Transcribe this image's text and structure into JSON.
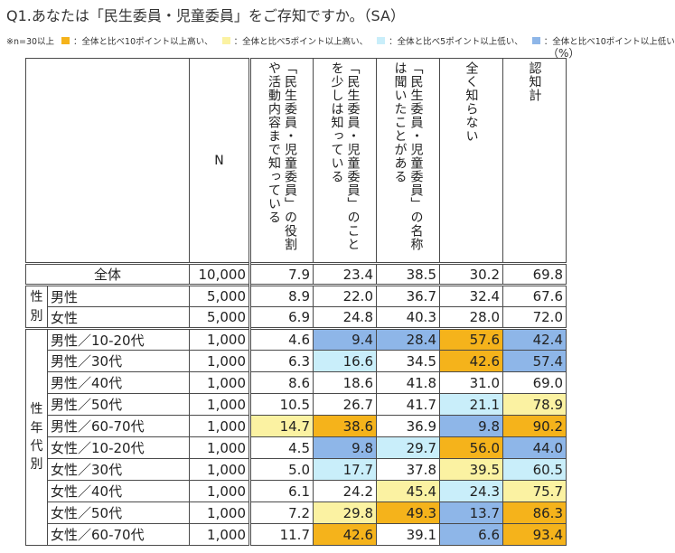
{
  "title": "Q1.あなたは「民生委員・児童委員」をご存知ですか。（SA）",
  "legend": {
    "note": "※n=30以上",
    "items": [
      {
        "color": "#f5b31b",
        "label": "：全体と比べ10ポイント以上高い、"
      },
      {
        "color": "#fbf2a2",
        "label": "：全体と比べ5ポイント以上高い、"
      },
      {
        "color": "#c9eefa",
        "label": "：全体と比べ5ポイント以上低い、"
      },
      {
        "color": "#8eb6e8",
        "label": "：全体と比べ10ポイント以上低い"
      }
    ],
    "unit": "（%）"
  },
  "table": {
    "n_header": "N",
    "columns": [
      "「民生委員・児童委員」の役割や活動内容まで知っている",
      "「民生委員・児童委員」のことを少しは知っている",
      "「民生委員・児童委員」の名称は聞いたことがある",
      "全く知らない",
      "認知計"
    ],
    "groups": {
      "sex": "性別",
      "sex_age": "性年代別"
    },
    "rows": [
      {
        "label": "全体",
        "n": "10,000",
        "values": [
          "7.9",
          "23.4",
          "38.5",
          "30.2",
          "69.8"
        ],
        "hl": [
          "",
          "",
          "",
          "",
          ""
        ]
      },
      {
        "label": "男性",
        "n": "5,000",
        "values": [
          "8.9",
          "22.0",
          "36.7",
          "32.4",
          "67.6"
        ],
        "hl": [
          "",
          "",
          "",
          "",
          ""
        ]
      },
      {
        "label": "女性",
        "n": "5,000",
        "values": [
          "6.9",
          "24.8",
          "40.3",
          "28.0",
          "72.0"
        ],
        "hl": [
          "",
          "",
          "",
          "",
          ""
        ]
      },
      {
        "label": "男性／10-20代",
        "n": "1,000",
        "values": [
          "4.6",
          "9.4",
          "28.4",
          "57.6",
          "42.4"
        ],
        "hl": [
          "",
          "b",
          "b",
          "o",
          "b"
        ]
      },
      {
        "label": "男性／30代",
        "n": "1,000",
        "values": [
          "6.3",
          "16.6",
          "34.5",
          "42.6",
          "57.4"
        ],
        "hl": [
          "",
          "c",
          "",
          "o",
          "b"
        ]
      },
      {
        "label": "男性／40代",
        "n": "1,000",
        "values": [
          "8.6",
          "18.6",
          "41.8",
          "31.0",
          "69.0"
        ],
        "hl": [
          "",
          "",
          "",
          "",
          ""
        ]
      },
      {
        "label": "男性／50代",
        "n": "1,000",
        "values": [
          "10.5",
          "26.7",
          "41.7",
          "21.1",
          "78.9"
        ],
        "hl": [
          "",
          "",
          "",
          "c",
          "y"
        ]
      },
      {
        "label": "男性／60-70代",
        "n": "1,000",
        "values": [
          "14.7",
          "38.6",
          "36.9",
          "9.8",
          "90.2"
        ],
        "hl": [
          "y",
          "o",
          "",
          "b",
          "o"
        ]
      },
      {
        "label": "女性／10-20代",
        "n": "1,000",
        "values": [
          "4.5",
          "9.8",
          "29.7",
          "56.0",
          "44.0"
        ],
        "hl": [
          "",
          "b",
          "c",
          "o",
          "b"
        ]
      },
      {
        "label": "女性／30代",
        "n": "1,000",
        "values": [
          "5.0",
          "17.7",
          "37.8",
          "39.5",
          "60.5"
        ],
        "hl": [
          "",
          "c",
          "",
          "y",
          "c"
        ]
      },
      {
        "label": "女性／40代",
        "n": "1,000",
        "values": [
          "6.1",
          "24.2",
          "45.4",
          "24.3",
          "75.7"
        ],
        "hl": [
          "",
          "",
          "y",
          "c",
          "y"
        ]
      },
      {
        "label": "女性／50代",
        "n": "1,000",
        "values": [
          "7.2",
          "29.8",
          "49.3",
          "13.7",
          "86.3"
        ],
        "hl": [
          "",
          "y",
          "o",
          "b",
          "o"
        ]
      },
      {
        "label": "女性／60-70代",
        "n": "1,000",
        "values": [
          "11.7",
          "42.6",
          "39.1",
          "6.6",
          "93.4"
        ],
        "hl": [
          "",
          "o",
          "",
          "b",
          "o"
        ]
      }
    ]
  }
}
